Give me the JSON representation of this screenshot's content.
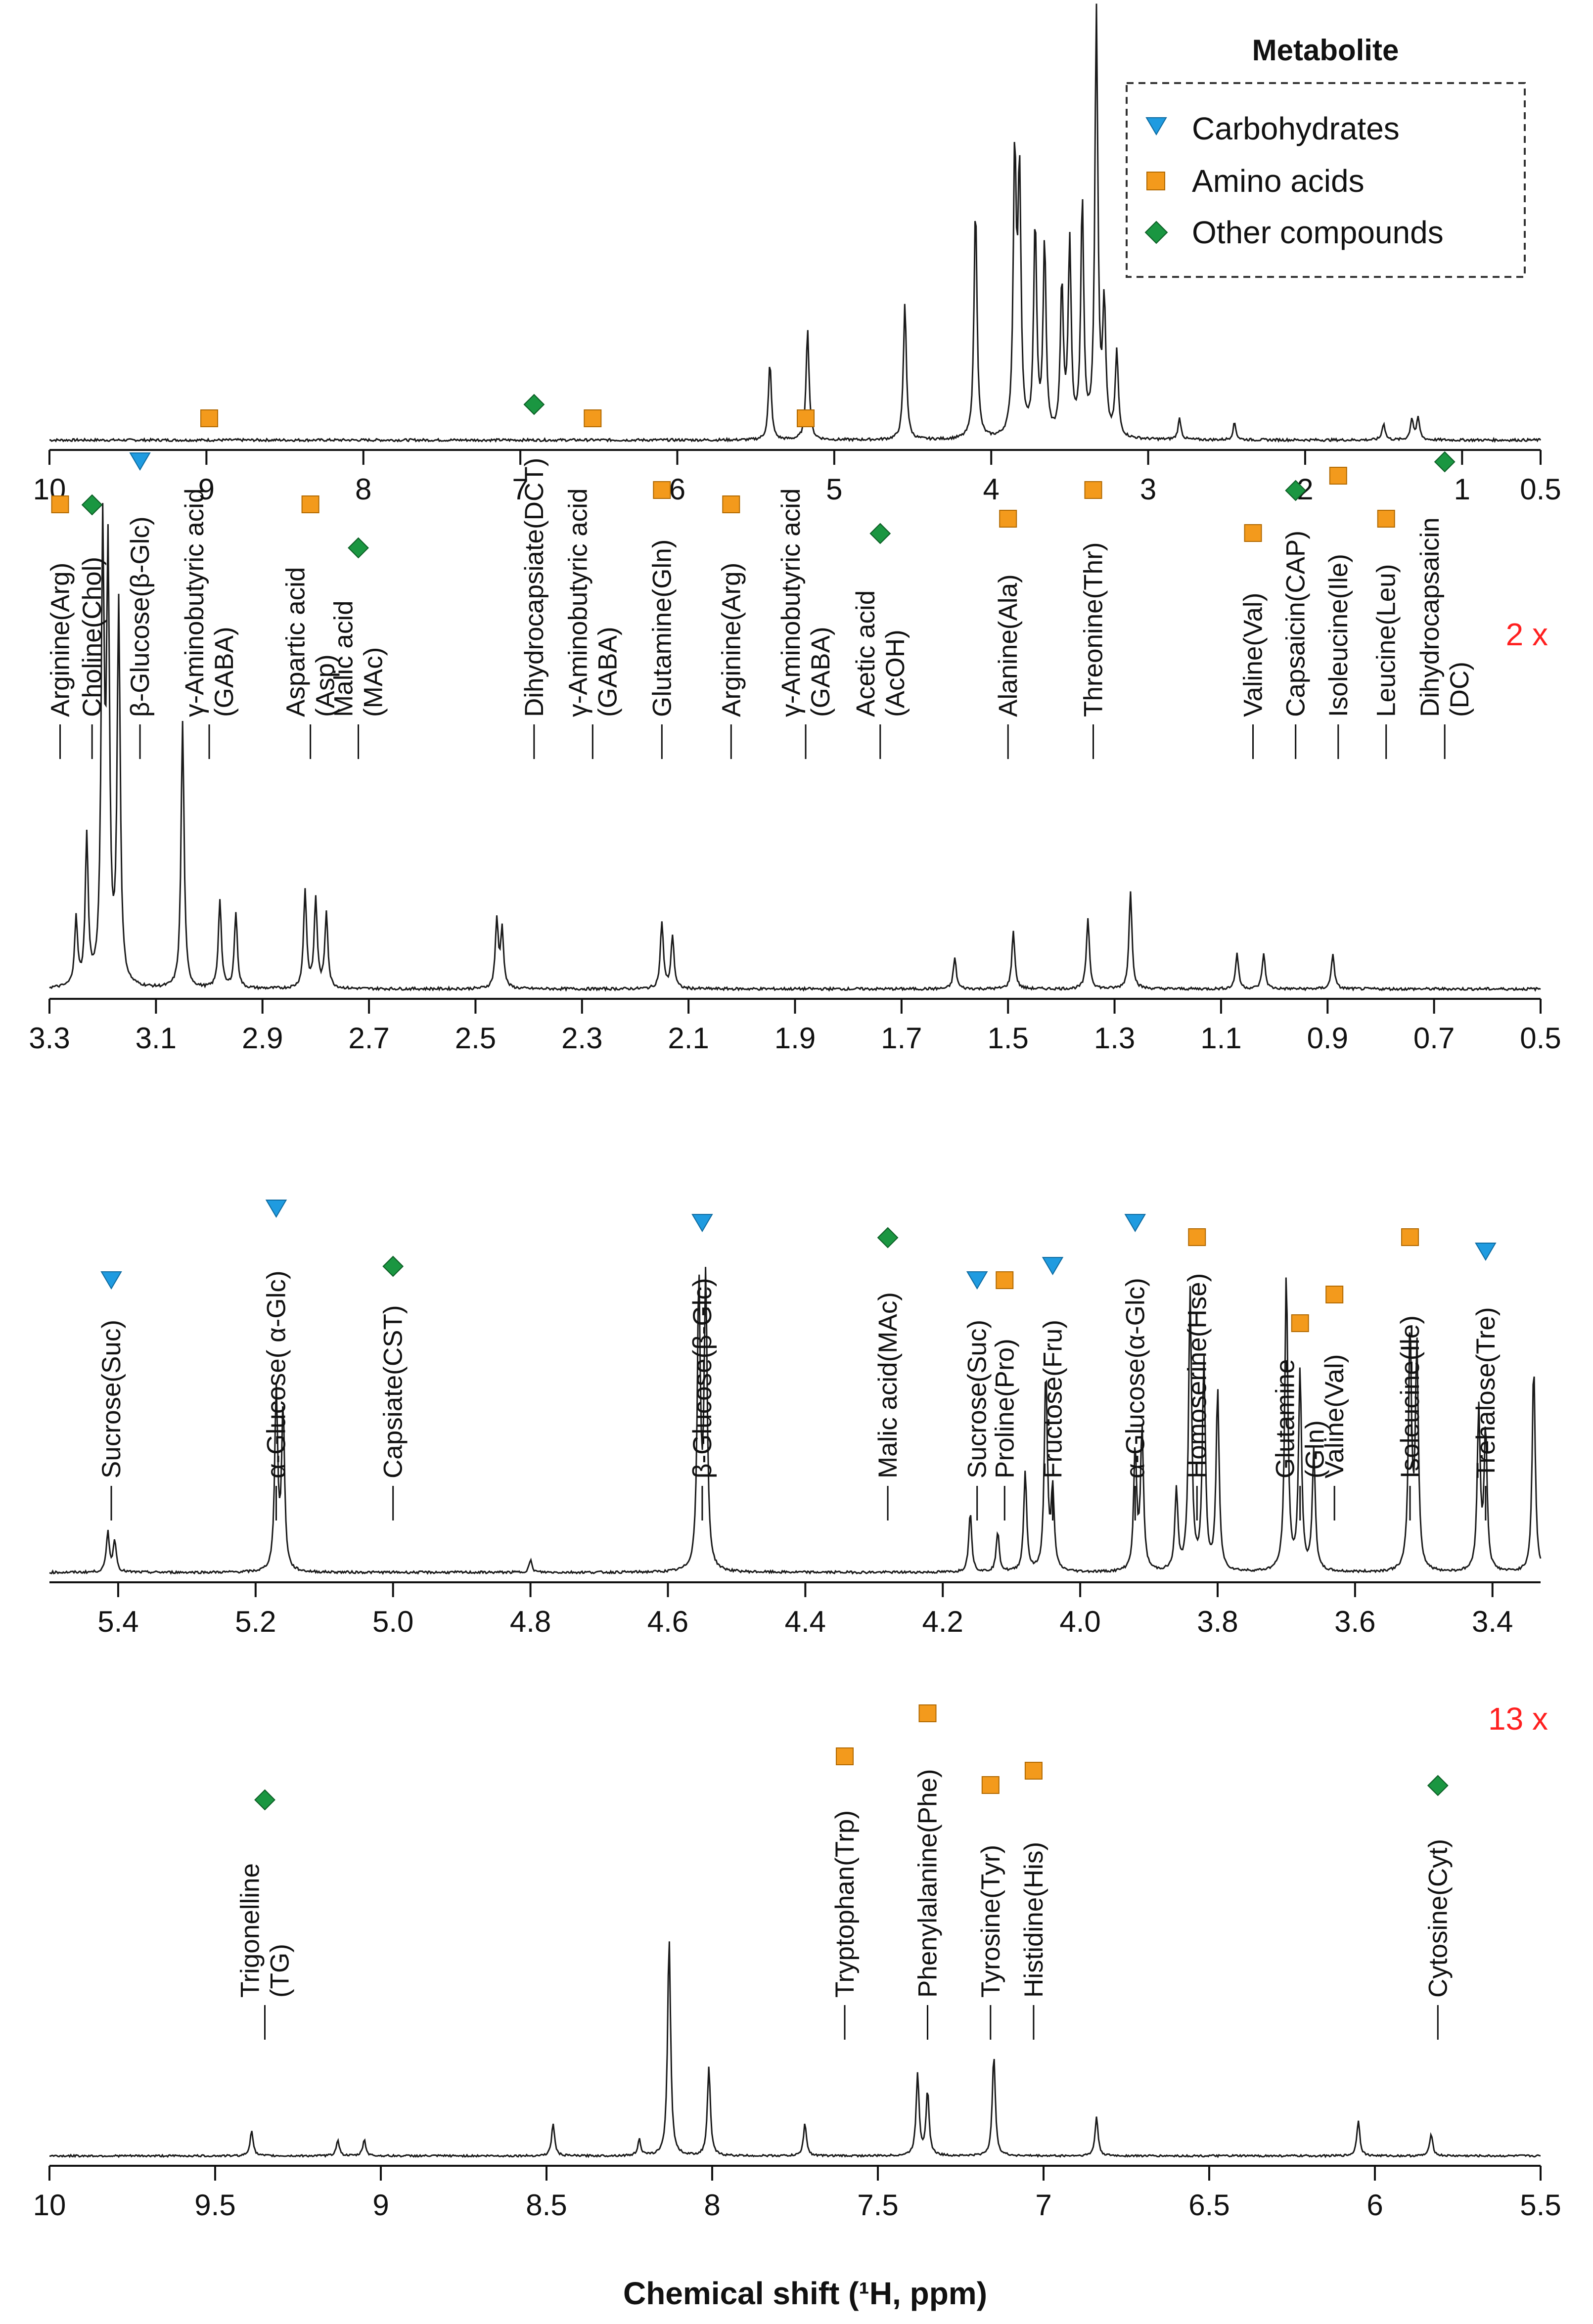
{
  "chart_data": [
    {
      "type": "line",
      "panel": "full-spectrum",
      "xlim": [
        10,
        0.5
      ],
      "ticks": [
        10,
        9,
        8,
        7,
        6,
        5,
        4,
        3,
        2,
        1,
        0.5
      ],
      "peaks": [
        [
          5.41,
          0.18
        ],
        [
          5.17,
          0.26
        ],
        [
          4.55,
          0.32
        ],
        [
          4.1,
          0.55
        ],
        [
          3.85,
          0.65
        ],
        [
          3.82,
          0.6
        ],
        [
          3.72,
          0.5
        ],
        [
          3.66,
          0.45
        ],
        [
          3.55,
          0.35
        ],
        [
          3.5,
          0.45
        ],
        [
          3.42,
          0.55
        ],
        [
          3.33,
          1.0
        ],
        [
          3.28,
          0.3
        ],
        [
          3.2,
          0.2
        ],
        [
          2.8,
          0.05
        ],
        [
          2.45,
          0.04
        ],
        [
          1.5,
          0.04
        ],
        [
          1.32,
          0.05
        ],
        [
          1.28,
          0.05
        ]
      ],
      "labels": [],
      "legend": {
        "title": "Metabolite",
        "position": "top-right",
        "items": [
          {
            "name": "Carbohydrates",
            "marker": "triangle-down",
            "color": "#1f9be0"
          },
          {
            "name": "Amino acids",
            "marker": "square",
            "color": "#f39a1c"
          },
          {
            "name": "Other compounds",
            "marker": "diamond",
            "color": "#1a9641"
          }
        ]
      }
    },
    {
      "type": "line",
      "panel": "aliphatic-region",
      "multiplier": "2 x",
      "xlim": [
        3.3,
        0.5
      ],
      "ticks": [
        3.3,
        3.1,
        2.9,
        2.7,
        2.5,
        2.3,
        2.1,
        1.9,
        1.7,
        1.5,
        1.3,
        1.1,
        0.9,
        0.7,
        0.5
      ],
      "peaks": [
        [
          3.25,
          0.15
        ],
        [
          3.23,
          0.33
        ],
        [
          3.2,
          0.98
        ],
        [
          3.19,
          0.92
        ],
        [
          3.17,
          0.85
        ],
        [
          3.05,
          0.6
        ],
        [
          2.98,
          0.2
        ],
        [
          2.95,
          0.17
        ],
        [
          2.82,
          0.22
        ],
        [
          2.8,
          0.2
        ],
        [
          2.78,
          0.17
        ],
        [
          2.46,
          0.15
        ],
        [
          2.45,
          0.13
        ],
        [
          2.15,
          0.15
        ],
        [
          2.13,
          0.12
        ],
        [
          1.6,
          0.07
        ],
        [
          1.49,
          0.13
        ],
        [
          1.35,
          0.16
        ],
        [
          1.27,
          0.22
        ],
        [
          1.07,
          0.08
        ],
        [
          1.02,
          0.08
        ],
        [
          0.89,
          0.08
        ]
      ],
      "labels": [
        {
          "lines": [
            "Arginine(Arg)"
          ],
          "marker": "square",
          "x": 3.28
        },
        {
          "lines": [
            "Choline(Chol)"
          ],
          "marker": "diamond",
          "x": 3.22
        },
        {
          "lines": [
            "β-Glucose(β-Glc)"
          ],
          "marker": "triangle-down",
          "x": 3.13
        },
        {
          "lines": [
            "γ-Aminobutyric acid",
            "(GABA)"
          ],
          "marker": "square",
          "x": 3.0
        },
        {
          "lines": [
            "Aspartic acid",
            "(Asp)"
          ],
          "marker": "square",
          "x": 2.81
        },
        {
          "lines": [
            "Malic acid",
            "(MAc)"
          ],
          "marker": "diamond",
          "x": 2.72
        },
        {
          "lines": [
            "Dihydrocapsiate(DCT)"
          ],
          "marker": "diamond",
          "x": 2.39
        },
        {
          "lines": [
            "γ-Aminobutyric acid",
            "(GABA)"
          ],
          "marker": "square",
          "x": 2.28
        },
        {
          "lines": [
            "Glutamine(Gln)"
          ],
          "marker": "square",
          "x": 2.15
        },
        {
          "lines": [
            "Arginine(Arg)"
          ],
          "marker": "square",
          "x": 2.02
        },
        {
          "lines": [
            "γ-Aminobutyric acid",
            "(GABA)"
          ],
          "marker": "square",
          "x": 1.88
        },
        {
          "lines": [
            "Acetic acid",
            "(AcOH)"
          ],
          "marker": "diamond",
          "x": 1.74
        },
        {
          "lines": [
            "Alanine(Ala)"
          ],
          "marker": "square",
          "x": 1.5
        },
        {
          "lines": [
            "Threonine(Thr)"
          ],
          "marker": "square",
          "x": 1.34
        },
        {
          "lines": [
            "Valine(Val)"
          ],
          "marker": "square",
          "x": 1.04
        },
        {
          "lines": [
            "Capsaicin(CAP)"
          ],
          "marker": "diamond",
          "x": 0.96
        },
        {
          "lines": [
            "Isoleucine(Ile)"
          ],
          "marker": "square",
          "x": 0.88
        },
        {
          "lines": [
            "Leucine(Leu)"
          ],
          "marker": "square",
          "x": 0.79
        },
        {
          "lines": [
            "Dihydrocapsaicin",
            "(DC)"
          ],
          "marker": "diamond",
          "x": 0.68
        }
      ]
    },
    {
      "type": "line",
      "panel": "carbohydrate-region",
      "xlim": [
        5.5,
        3.33
      ],
      "ticks": [
        5.4,
        5.2,
        5.0,
        4.8,
        4.6,
        4.4,
        4.2,
        4.0,
        3.8,
        3.6,
        3.4
      ],
      "peaks": [
        [
          5.415,
          0.1
        ],
        [
          5.405,
          0.08
        ],
        [
          5.17,
          0.45
        ],
        [
          5.16,
          0.4
        ],
        [
          4.8,
          0.03
        ],
        [
          4.555,
          0.72
        ],
        [
          4.545,
          0.72
        ],
        [
          4.16,
          0.15
        ],
        [
          4.12,
          0.1
        ],
        [
          4.08,
          0.25
        ],
        [
          4.05,
          0.5
        ],
        [
          4.04,
          0.2
        ],
        [
          3.92,
          0.3
        ],
        [
          3.91,
          0.35
        ],
        [
          3.86,
          0.2
        ],
        [
          3.84,
          0.7
        ],
        [
          3.82,
          0.52
        ],
        [
          3.8,
          0.45
        ],
        [
          3.7,
          0.75
        ],
        [
          3.68,
          0.5
        ],
        [
          3.66,
          0.3
        ],
        [
          3.52,
          0.6
        ],
        [
          3.51,
          0.55
        ],
        [
          3.42,
          0.4
        ],
        [
          3.41,
          0.35
        ],
        [
          3.34,
          0.52
        ]
      ],
      "labels": [
        {
          "lines": [
            "Sucrose(Suc)"
          ],
          "marker": "triangle-down",
          "x": 5.41
        },
        {
          "lines": [
            "α-Glucose( α-Glc)"
          ],
          "marker": "triangle-down",
          "x": 5.17
        },
        {
          "lines": [
            "Capsiate(CST)"
          ],
          "marker": "diamond",
          "x": 5.0
        },
        {
          "lines": [
            "β-Glucose(β-Glc)"
          ],
          "marker": "triangle-down",
          "x": 4.55
        },
        {
          "lines": [
            "Malic acid(MAc)"
          ],
          "marker": "diamond",
          "x": 4.28
        },
        {
          "lines": [
            "Sucrose(Suc)"
          ],
          "marker": "triangle-down",
          "x": 4.15
        },
        {
          "lines": [
            "Proline(Pro)"
          ],
          "marker": "square",
          "x": 4.11
        },
        {
          "lines": [
            "Fructose(Fru)"
          ],
          "marker": "triangle-down",
          "x": 4.04
        },
        {
          "lines": [
            "α-Glucose(α-Glc)"
          ],
          "marker": "triangle-down",
          "x": 3.92
        },
        {
          "lines": [
            "Homoserine(Hse)"
          ],
          "marker": "square",
          "x": 3.83
        },
        {
          "lines": [
            "Glutamine",
            "(Gln)"
          ],
          "marker": "square",
          "x": 3.68
        },
        {
          "lines": [
            "Valine(Val)"
          ],
          "marker": "square",
          "x": 3.63
        },
        {
          "lines": [
            "Isoleucine(Ile)"
          ],
          "marker": "square",
          "x": 3.52
        },
        {
          "lines": [
            "Trehalose(Tre)"
          ],
          "marker": "triangle-down",
          "x": 3.41
        }
      ]
    },
    {
      "type": "line",
      "panel": "aromatic-region",
      "multiplier": "13 x",
      "xlim": [
        10,
        5.5
      ],
      "ticks": [
        10,
        9.5,
        9,
        8.5,
        8,
        7.5,
        7,
        6.5,
        6,
        5.5
      ],
      "xlabel": "Chemical shift (¹H, ppm)",
      "peaks": [
        [
          9.39,
          0.08
        ],
        [
          9.13,
          0.05
        ],
        [
          9.05,
          0.05
        ],
        [
          8.48,
          0.1
        ],
        [
          8.22,
          0.05
        ],
        [
          8.13,
          0.67
        ],
        [
          8.01,
          0.27
        ],
        [
          7.72,
          0.1
        ],
        [
          7.38,
          0.25
        ],
        [
          7.35,
          0.2
        ],
        [
          7.15,
          0.31
        ],
        [
          6.84,
          0.12
        ],
        [
          6.05,
          0.11
        ],
        [
          5.83,
          0.07
        ]
      ],
      "labels": [
        {
          "lines": [
            "Trigonelline",
            "(TG)"
          ],
          "marker": "diamond",
          "x": 9.35
        },
        {
          "lines": [
            "Tryptophan(Trp)"
          ],
          "marker": "square",
          "x": 7.6
        },
        {
          "lines": [
            "Phenylalanine(Phe)"
          ],
          "marker": "square",
          "x": 7.35
        },
        {
          "lines": [
            "Tyrosine(Tyr)"
          ],
          "marker": "square",
          "x": 7.16
        },
        {
          "lines": [
            "Histidine(His)"
          ],
          "marker": "square",
          "x": 7.03
        },
        {
          "lines": [
            "Cytosine(Cyt)"
          ],
          "marker": "diamond",
          "x": 5.81
        }
      ]
    }
  ]
}
